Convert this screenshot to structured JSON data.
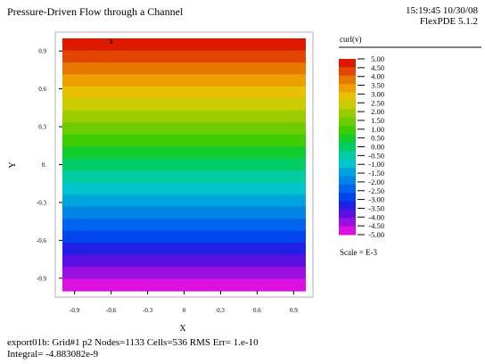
{
  "header": {
    "title": "Pressure-Driven Flow through a Channel",
    "timestamp": "15:19:45 10/30/08",
    "software": "FlexPDE 5.1.2"
  },
  "footer": {
    "line1": "export01b:  Grid#1  p2  Nodes=1133 Cells=536 RMS Err= 1.e-10",
    "line2": "Integral= -4.883082e-9"
  },
  "chart_data": {
    "type": "heatmap",
    "title": "Pressure-Driven Flow through a Channel",
    "xlabel": "X",
    "ylabel": "Y",
    "xlim": [
      -1.0,
      1.0
    ],
    "ylim": [
      -1.0,
      1.0
    ],
    "xticks": [
      "-0.9",
      "-0.6",
      "-0.3",
      "0",
      "0.3",
      "0.6",
      "0.9"
    ],
    "yticks": [
      "0.9",
      "0.6",
      "0.3",
      "0.",
      "-0.3",
      "-0.6",
      "-0.9"
    ],
    "xtick_values": [
      -0.9,
      -0.6,
      -0.3,
      0,
      0.3,
      0.6,
      0.9
    ],
    "ytick_values": [
      0.9,
      0.6,
      0.3,
      0,
      -0.3,
      -0.6,
      -0.9
    ],
    "legend_title": "curl(v)",
    "legend_scale": "Scale = E-3",
    "legend_values": [
      "5.00",
      "4.50",
      "4.00",
      "3.50",
      "3.00",
      "2.50",
      "2.00",
      "1.50",
      "1.00",
      "0.50",
      "0.00",
      "-0.50",
      "-1.00",
      "-1.50",
      "-2.00",
      "-2.50",
      "-3.00",
      "-3.50",
      "-4.00",
      "-4.50",
      "-5.00"
    ],
    "legend_colors": [
      "#dd1a00",
      "#e24600",
      "#e87700",
      "#ed9f00",
      "#e8c200",
      "#c8cc00",
      "#9acc00",
      "#6ccc00",
      "#3fcc00",
      "#12cc2c",
      "#00cc66",
      "#00cca0",
      "#00c4cc",
      "#00a4dc",
      "#0084e6",
      "#0064ec",
      "#0044ee",
      "#2020e6",
      "#5a10e0",
      "#9a10e0",
      "#dc10e0"
    ],
    "bands_top_to_bottom": [
      "#dd1a00",
      "#e24600",
      "#e87700",
      "#ed9f00",
      "#e8c200",
      "#c8cc00",
      "#9acc00",
      "#6ccc00",
      "#3fcc00",
      "#12cc2c",
      "#00cc66",
      "#00cca0",
      "#00c4cc",
      "#00a4dc",
      "#0084e6",
      "#0064ec",
      "#0044ee",
      "#2020e6",
      "#5a10e0",
      "#9a10e0",
      "#dc10e0"
    ],
    "marker": {
      "label": "x",
      "x": -0.6,
      "y": 0.98
    }
  }
}
